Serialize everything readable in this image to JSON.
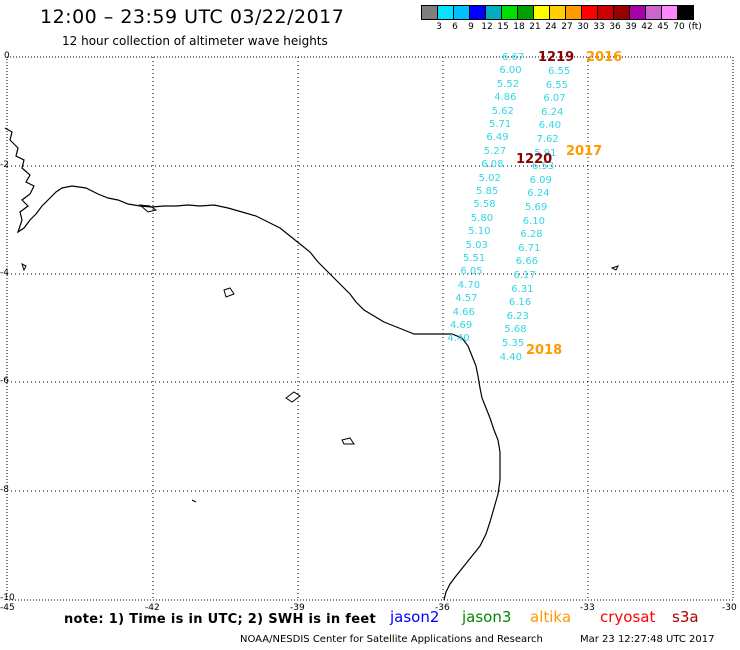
{
  "header": {
    "title": "12:00 – 23:59 UTC 03/22/2017",
    "subtitle": "12 hour collection of altimeter wave heights"
  },
  "legend": {
    "colors": [
      "#7f7f7f",
      "#00e5ff",
      "#00c0ff",
      "#0000ff",
      "#00b0c0",
      "#00e000",
      "#00a000",
      "#ffff00",
      "#ffd000",
      "#ff9a00",
      "#ff0000",
      "#cc0000",
      "#990000",
      "#aa00aa",
      "#cc66cc",
      "#ff88ff",
      "#000000"
    ],
    "labels": [
      "3",
      "6",
      "9",
      "12",
      "15",
      "18",
      "21",
      "24",
      "27",
      "30",
      "33",
      "36",
      "39",
      "42",
      "45",
      "70",
      "(ft)"
    ]
  },
  "axes": {
    "lon_labels": [
      "-45",
      "-42",
      "-39",
      "-36",
      "-33",
      "-30"
    ],
    "lat_labels": [
      "0",
      "-2",
      "-4",
      "-6",
      "-8",
      "-10"
    ]
  },
  "tracks": {
    "pass_labels": [
      "2016",
      "2017",
      "2018"
    ],
    "time_labels": [
      "1219",
      "1220"
    ],
    "left_track": [
      "6.67",
      "6.00",
      "5.52",
      "4.86",
      "5.62",
      "5.71",
      "6.49",
      "5.27",
      "6.08",
      "5.02",
      "5.85",
      "5.58",
      "5.80",
      "5.10",
      "5.03",
      "5.51",
      "6.05",
      "4.70",
      "4.57",
      "4.66",
      "4.69",
      "4.40"
    ],
    "right_track": [
      "6.55",
      "6.55",
      "6.07",
      "6.24",
      "6.40",
      "7.62",
      "5.91",
      "6.53",
      "6.09",
      "6.24",
      "5.69",
      "6.10",
      "6.28",
      "6.71",
      "6.66",
      "6.17",
      "6.31",
      "6.16",
      "6.23",
      "5.68",
      "5.35",
      "4.40"
    ]
  },
  "note": "note: 1) Time is in UTC; 2) SWH is in feet",
  "satellites": [
    {
      "name": "jason2",
      "color": "#0000ff"
    },
    {
      "name": "jason3",
      "color": "#008800"
    },
    {
      "name": "altika",
      "color": "#ff9a00"
    },
    {
      "name": "cryosat",
      "color": "#ff0000"
    },
    {
      "name": "s3a",
      "color": "#aa0000"
    }
  ],
  "footer": {
    "credit": "NOAA/NESDIS Center for Satellite Applications and Research",
    "timestamp": "Mar 23 12:27:48 UTC 2017"
  }
}
